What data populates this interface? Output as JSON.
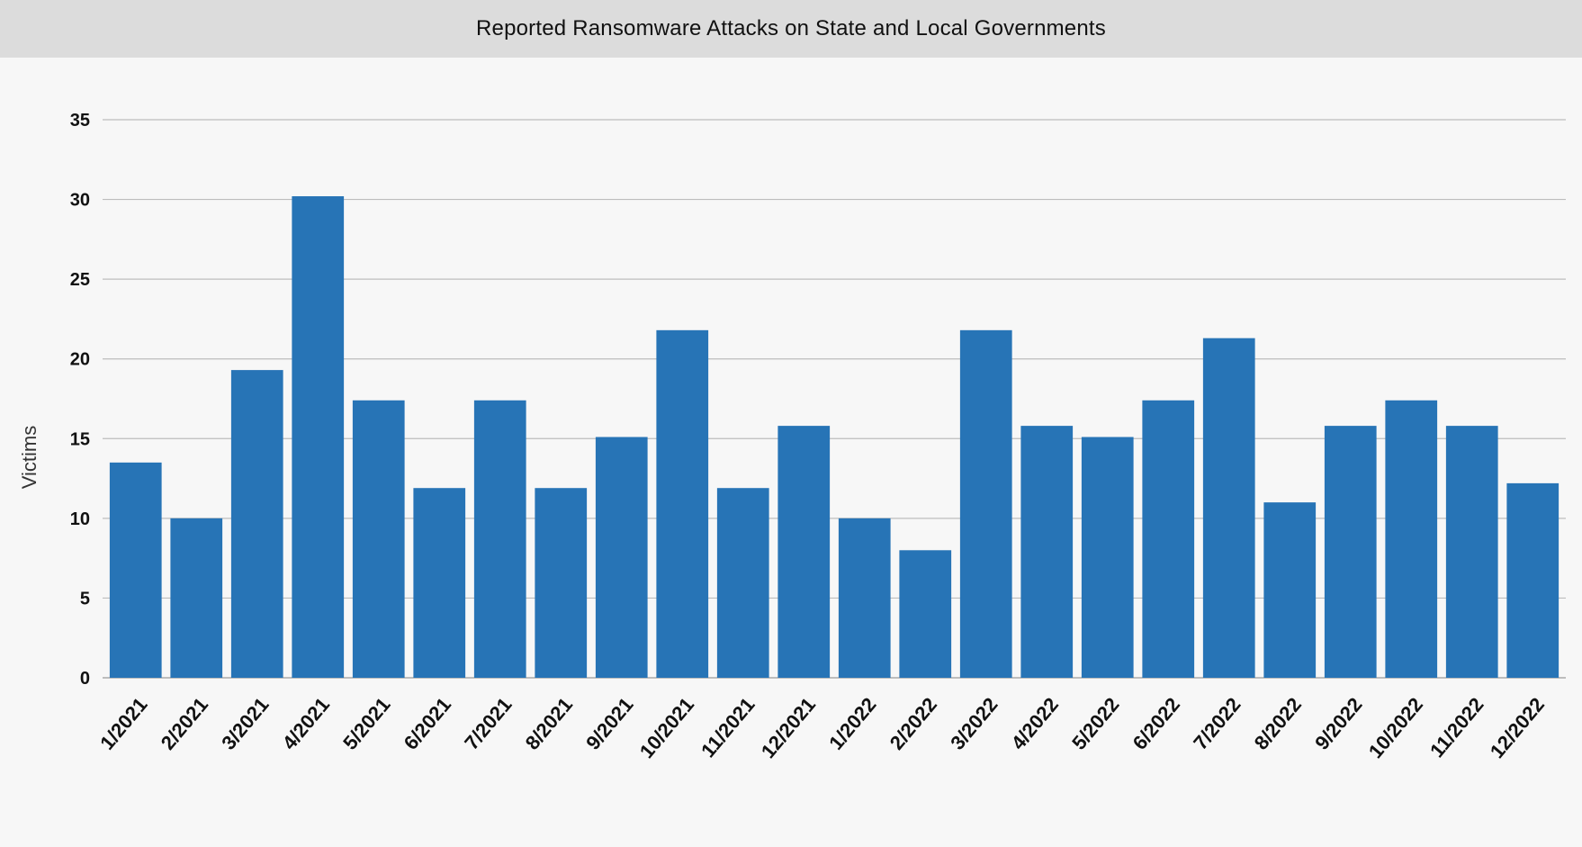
{
  "chart_data": {
    "type": "bar",
    "title": "Reported Ransomware Attacks on State and Local Governments",
    "xlabel": "",
    "ylabel": "Victims",
    "ylim": [
      0,
      35
    ],
    "yticks": [
      0,
      5,
      10,
      15,
      20,
      25,
      30,
      35
    ],
    "grid": true,
    "bar_color": "#2774b6",
    "categories": [
      "1/2021",
      "2/2021",
      "3/2021",
      "4/2021",
      "5/2021",
      "6/2021",
      "7/2021",
      "8/2021",
      "9/2021",
      "10/2021",
      "11/2021",
      "12/2021",
      "1/2022",
      "2/2022",
      "3/2022",
      "4/2022",
      "5/2022",
      "6/2022",
      "7/2022",
      "8/2022",
      "9/2022",
      "10/2022",
      "11/2022",
      "12/2022"
    ],
    "values": [
      13.5,
      10,
      19.3,
      30.2,
      17.4,
      11.9,
      17.4,
      11.9,
      15.1,
      21.8,
      11.9,
      15.8,
      10,
      8,
      21.8,
      15.8,
      15.1,
      17.4,
      21.3,
      11,
      15.8,
      17.4,
      15.8,
      12.2
    ]
  }
}
